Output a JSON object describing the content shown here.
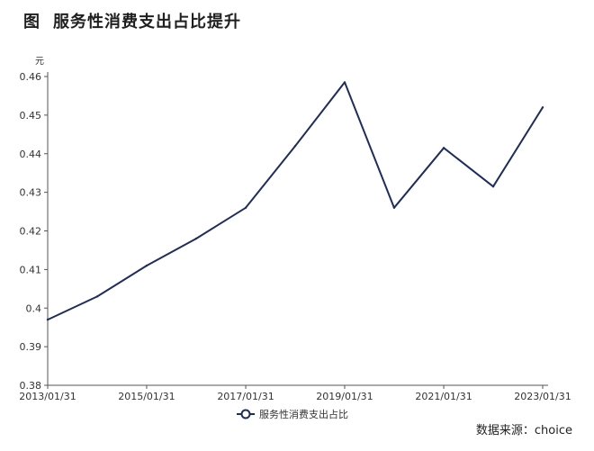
{
  "figure": {
    "prefix": "图",
    "title": "服务性消费支出占比提升"
  },
  "source": "数据来源：choice",
  "colors": {
    "line": "#1f2d5c",
    "axis": "#555555",
    "text": "#333333"
  },
  "chart_data": {
    "type": "line",
    "title": "服务性消费支出占比提升",
    "ylabel": "元",
    "xlabel": "",
    "ylim": [
      0.38,
      0.46
    ],
    "yticks": [
      "0.38",
      "0.39",
      "0.4",
      "0.41",
      "0.42",
      "0.43",
      "0.44",
      "0.45",
      "0.46"
    ],
    "xlim": [
      "2013/01/31",
      "2023/01/31"
    ],
    "xticks": [
      "2013/01/31",
      "2015/01/31",
      "2017/01/31",
      "2019/01/31",
      "2021/01/31",
      "2023/01/31"
    ],
    "grid": false,
    "legend": "bottom-center",
    "series": [
      {
        "name": "服务性消费支出占比",
        "x": [
          "2013/01/31",
          "2014/01/31",
          "2015/01/31",
          "2016/01/31",
          "2017/01/31",
          "2018/01/31",
          "2019/01/31",
          "2020/01/31",
          "2021/01/31",
          "2022/01/31",
          "2023/01/31"
        ],
        "values": [
          0.397,
          0.403,
          0.411,
          0.418,
          0.426,
          0.442,
          0.4585,
          0.426,
          0.4415,
          0.4315,
          0.452
        ]
      }
    ]
  }
}
